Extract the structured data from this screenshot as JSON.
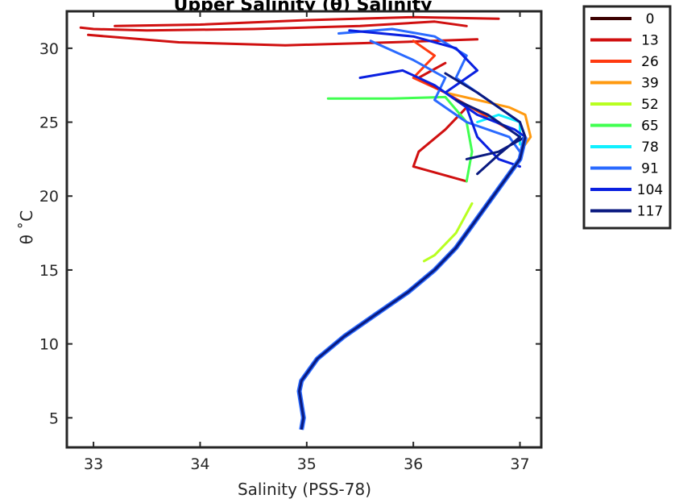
{
  "chart_data": {
    "type": "line",
    "title": "Upper Salinity (θ) Salinity",
    "xlabel": "Salinity (PSS-78)",
    "ylabel": "θ ˚C",
    "xlim": [
      32.75,
      37.2
    ],
    "ylim": [
      3,
      32.5
    ],
    "xticks": [
      33,
      34,
      35,
      36,
      37
    ],
    "yticks": [
      5,
      10,
      15,
      20,
      25,
      30
    ],
    "grid": false,
    "legend_position": "outside-right",
    "legend": [
      "0",
      "13",
      "26",
      "39",
      "52",
      "65",
      "78",
      "91",
      "104",
      "117"
    ],
    "colors": [
      "#3b0000",
      "#d01010",
      "#ff3a10",
      "#ff9a10",
      "#b8ff20",
      "#40ff50",
      "#10f0ff",
      "#2a6aff",
      "#0a20e0",
      "#0a1a80"
    ],
    "deep_tail": {
      "name": "common deep profile",
      "x": [
        34.95,
        34.97,
        34.93,
        34.95,
        35.1,
        35.35,
        35.65,
        35.95,
        36.2,
        36.4,
        36.55,
        36.7,
        36.85,
        37.0,
        37.05
      ],
      "y": [
        4.2,
        5.0,
        6.8,
        7.5,
        9.0,
        10.5,
        12.0,
        13.5,
        15.0,
        16.5,
        18.0,
        19.5,
        21.0,
        22.5,
        24.0
      ]
    },
    "series": [
      {
        "name": "13",
        "x": [
          36.5,
          36.2,
          35.5,
          34.5,
          33.5,
          33.0,
          32.88
        ],
        "y": [
          31.5,
          31.8,
          31.5,
          31.3,
          31.2,
          31.3,
          31.4
        ]
      },
      {
        "name": "13",
        "x": [
          36.8,
          36.0,
          35.0,
          34.0,
          33.2
        ],
        "y": [
          32.0,
          32.1,
          31.9,
          31.6,
          31.5
        ]
      },
      {
        "name": "13",
        "x": [
          36.6,
          35.8,
          34.8,
          33.8,
          32.95
        ],
        "y": [
          30.6,
          30.4,
          30.2,
          30.4,
          30.9
        ]
      },
      {
        "name": "26",
        "x": [
          36.9,
          36.3,
          36.0,
          36.2,
          36.0
        ],
        "y": [
          24.5,
          27.0,
          28.0,
          29.5,
          30.5
        ]
      },
      {
        "name": "13",
        "x": [
          36.5,
          36.0,
          36.05,
          36.3,
          36.5,
          36.3,
          36.05,
          36.3
        ],
        "y": [
          21.0,
          22.0,
          23.0,
          24.5,
          26.0,
          27.0,
          28.0,
          29.0
        ]
      },
      {
        "name": "65",
        "x": [
          35.2,
          35.8,
          36.3,
          36.5,
          36.55,
          36.5
        ],
        "y": [
          26.6,
          26.6,
          26.7,
          25.0,
          23.0,
          21.0
        ]
      },
      {
        "name": "39",
        "x": [
          36.3,
          36.6,
          36.9,
          37.05,
          37.1,
          37.0
        ],
        "y": [
          27.0,
          26.5,
          26.0,
          25.5,
          24.0,
          23.0
        ]
      },
      {
        "name": "52",
        "x": [
          36.1,
          36.2,
          36.4,
          36.55
        ],
        "y": [
          15.6,
          16.0,
          17.5,
          19.5
        ]
      },
      {
        "name": "78",
        "x": [
          36.6,
          36.8,
          37.0,
          37.0
        ],
        "y": [
          25.0,
          25.5,
          25.0,
          23.5
        ]
      },
      {
        "name": "91",
        "x": [
          35.3,
          35.8,
          36.2,
          36.5,
          36.4,
          36.7,
          37.0,
          37.05
        ],
        "y": [
          31.0,
          31.3,
          30.8,
          29.5,
          28.0,
          26.5,
          25.0,
          24.0
        ]
      },
      {
        "name": "91",
        "x": [
          35.6,
          36.0,
          36.3,
          36.2,
          36.5,
          36.9,
          37.0
        ],
        "y": [
          30.5,
          29.2,
          28.0,
          26.5,
          25.0,
          24.0,
          23.0
        ]
      },
      {
        "name": "104",
        "x": [
          35.4,
          36.0,
          36.4,
          36.6,
          36.3,
          36.6,
          36.95,
          37.05
        ],
        "y": [
          31.2,
          30.8,
          30.0,
          28.5,
          27.0,
          25.5,
          24.5,
          24.0
        ]
      },
      {
        "name": "104",
        "x": [
          35.5,
          35.9,
          36.2,
          36.5,
          36.6,
          36.8,
          37.0
        ],
        "y": [
          28.0,
          28.5,
          27.5,
          26.0,
          24.0,
          22.5,
          22.0
        ]
      },
      {
        "name": "117",
        "x": [
          36.3,
          36.6,
          36.8,
          37.0,
          37.05,
          36.8,
          36.5
        ],
        "y": [
          28.3,
          27.0,
          26.0,
          25.0,
          24.0,
          23.0,
          22.5
        ]
      },
      {
        "name": "117",
        "x": [
          36.4,
          36.7,
          36.9,
          37.0,
          36.8,
          36.6
        ],
        "y": [
          26.5,
          25.5,
          24.5,
          24.0,
          22.8,
          21.5
        ]
      }
    ]
  }
}
